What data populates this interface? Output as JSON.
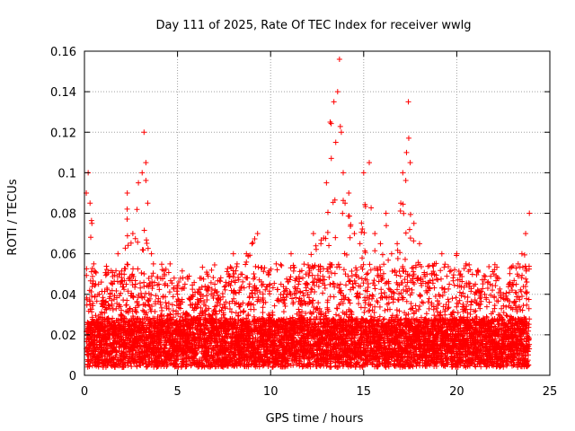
{
  "chart_data": {
    "type": "scatter",
    "title": "Day 111 of 2025, Rate Of TEC Index for receiver wwlg",
    "xlabel": "GPS time / hours",
    "ylabel": "ROTI / TECUs",
    "xlim": [
      0,
      25
    ],
    "ylim": [
      0,
      0.16
    ],
    "x_ticks": [
      0,
      5,
      10,
      15,
      20,
      25
    ],
    "x_tick_labels": [
      "0",
      "5",
      "10",
      "15",
      "20",
      "25"
    ],
    "y_ticks": [
      0,
      0.02,
      0.04,
      0.06,
      0.08,
      0.1,
      0.12,
      0.14,
      0.16
    ],
    "y_tick_labels": [
      "0",
      "0.02",
      "0.04",
      "0.06",
      "0.08",
      "0.1",
      "0.12",
      "0.14",
      "0.16"
    ],
    "grid": true,
    "marker": "+",
    "series_color": "#ff0000",
    "series": [
      {
        "name": "ROTI",
        "x": [
          0.1,
          0.2,
          0.3,
          0.4,
          0.5,
          0.6,
          0.8,
          1.0,
          1.2,
          1.5,
          1.8,
          2.0,
          2.3,
          2.6,
          2.9,
          3.1,
          3.2,
          3.3,
          3.4,
          3.6,
          4.0,
          4.3,
          4.6,
          5.0,
          5.4,
          5.8,
          6.2,
          6.6,
          7.0,
          7.5,
          8.0,
          8.2,
          8.4,
          8.7,
          9.0,
          9.3,
          9.6,
          9.9,
          10.3,
          10.7,
          11.1,
          11.5,
          11.9,
          12.3,
          12.7,
          13.0,
          13.2,
          13.4,
          13.5,
          13.6,
          13.7,
          13.8,
          13.9,
          14.0,
          14.2,
          14.5,
          14.8,
          15.0,
          15.3,
          15.6,
          15.9,
          16.2,
          16.5,
          16.8,
          17.1,
          17.3,
          17.4,
          17.5,
          17.7,
          18.0,
          18.4,
          18.8,
          19.2,
          19.6,
          20.0,
          20.5,
          21.0,
          21.5,
          22.0,
          22.5,
          23.0,
          23.3,
          23.5,
          23.7,
          23.9
        ],
        "y": [
          0.09,
          0.1,
          0.085,
          0.075,
          0.055,
          0.045,
          0.04,
          0.035,
          0.05,
          0.045,
          0.06,
          0.05,
          0.09,
          0.07,
          0.095,
          0.1,
          0.12,
          0.105,
          0.085,
          0.06,
          0.045,
          0.05,
          0.055,
          0.04,
          0.045,
          0.035,
          0.04,
          0.05,
          0.045,
          0.035,
          0.06,
          0.055,
          0.05,
          0.06,
          0.065,
          0.07,
          0.045,
          0.05,
          0.055,
          0.04,
          0.06,
          0.045,
          0.05,
          0.07,
          0.065,
          0.095,
          0.125,
          0.135,
          0.115,
          0.14,
          0.156,
          0.12,
          0.1,
          0.085,
          0.09,
          0.07,
          0.065,
          0.1,
          0.105,
          0.07,
          0.065,
          0.08,
          0.06,
          0.065,
          0.1,
          0.11,
          0.135,
          0.105,
          0.075,
          0.065,
          0.05,
          0.055,
          0.06,
          0.045,
          0.06,
          0.055,
          0.045,
          0.04,
          0.05,
          0.04,
          0.045,
          0.055,
          0.06,
          0.07,
          0.08
        ]
      }
    ]
  }
}
